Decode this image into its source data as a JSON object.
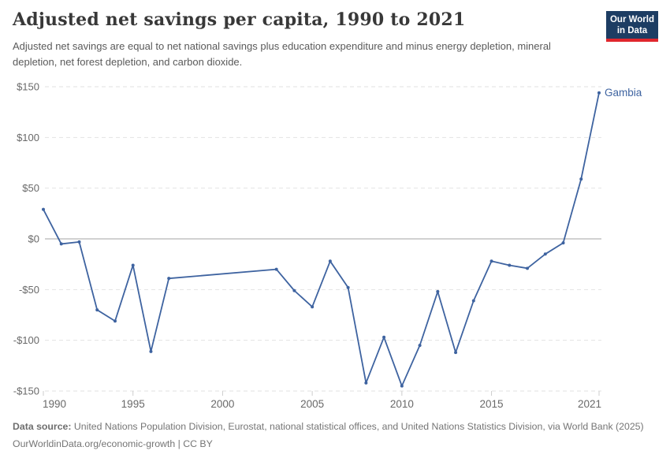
{
  "header": {
    "title": "Adjusted net savings per capita, 1990 to 2021",
    "subtitle": "Adjusted net savings are equal to net national savings plus education expenditure and minus energy depletion, mineral depletion, net forest depletion, and carbon dioxide."
  },
  "logo": {
    "line1": "Our World",
    "line2": "in Data"
  },
  "chart_data": {
    "type": "line",
    "title": "Adjusted net savings per capita, 1990 to 2021",
    "xlabel": "",
    "ylabel": "",
    "xlim": [
      1990,
      2021
    ],
    "ylim": [
      -150,
      150
    ],
    "x_ticks": [
      1990,
      1995,
      2000,
      2005,
      2010,
      2015,
      2021
    ],
    "y_ticks": [
      150,
      100,
      50,
      0,
      -50,
      -100,
      -150
    ],
    "y_prefix": "$",
    "grid": "horizontal-dashed",
    "legend_position": "end-of-line-label",
    "series": [
      {
        "name": "Gambia",
        "color": "#3e63a0",
        "points": [
          [
            1990,
            29
          ],
          [
            1991,
            -5
          ],
          [
            1992,
            -3
          ],
          [
            1993,
            -70
          ],
          [
            1994,
            -81
          ],
          [
            1995,
            -26
          ],
          [
            1996,
            -111
          ],
          [
            1997,
            -39
          ],
          [
            2003,
            -30
          ],
          [
            2004,
            -51
          ],
          [
            2005,
            -67
          ],
          [
            2006,
            -22
          ],
          [
            2007,
            -48
          ],
          [
            2008,
            -142
          ],
          [
            2009,
            -97
          ],
          [
            2010,
            -145
          ],
          [
            2011,
            -105
          ],
          [
            2012,
            -52
          ],
          [
            2013,
            -112
          ],
          [
            2014,
            -61
          ],
          [
            2015,
            -22
          ],
          [
            2016,
            -26
          ],
          [
            2017,
            -29
          ],
          [
            2018,
            -15
          ],
          [
            2019,
            -4
          ],
          [
            2020,
            59
          ],
          [
            2021,
            144
          ]
        ]
      }
    ]
  },
  "footer": {
    "source_label": "Data source:",
    "source_text": " United Nations Population Division, Eurostat, national statistical offices, and United Nations Statistics Division, via World Bank (2025)",
    "license_text": "OurWorldinData.org/economic-growth | CC BY"
  },
  "colors": {
    "line": "#3e63a0",
    "grid": "#e2e2e2",
    "zero_line": "#a3a3a3",
    "tick": "#cdcdcd",
    "axis_text": "#696969",
    "logo_bg": "#1d3d63",
    "logo_accent": "#e0262d"
  }
}
